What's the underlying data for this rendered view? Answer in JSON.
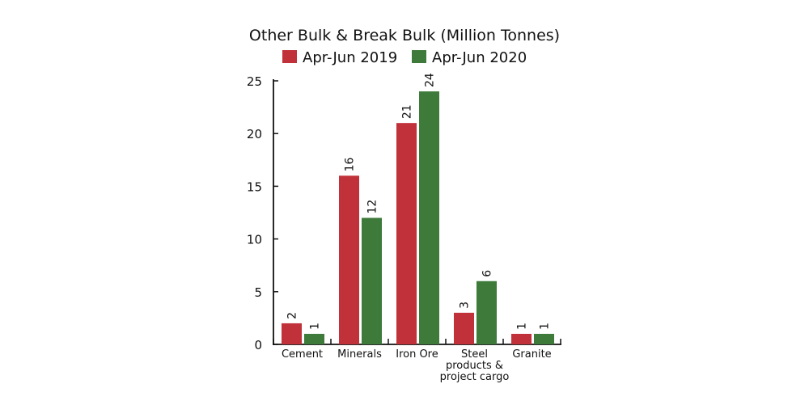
{
  "chart_data": {
    "type": "bar",
    "title": "Other Bulk & Break Bulk (Million Tonnes)",
    "categories": [
      "Cement",
      "Minerals",
      "Iron Ore",
      "Steel products & project cargo",
      "Granite"
    ],
    "category_lines": [
      [
        "Cement"
      ],
      [
        "Minerals"
      ],
      [
        "Iron Ore"
      ],
      [
        "Steel",
        "products &",
        "project cargo"
      ],
      [
        "Granite"
      ]
    ],
    "series": [
      {
        "name": "Apr-Jun 2019",
        "color": "#C1313A",
        "values": [
          2,
          16,
          21,
          3,
          1
        ]
      },
      {
        "name": "Apr-Jun 2020",
        "color": "#3E7B3B",
        "values": [
          1,
          12,
          24,
          6,
          1
        ]
      }
    ],
    "xlabel": "",
    "ylabel": "",
    "ylim": [
      0,
      25
    ],
    "yticks": [
      0,
      5,
      10,
      15,
      20,
      25
    ],
    "grid": false,
    "legend_position": "top-center",
    "data_labels": true
  }
}
